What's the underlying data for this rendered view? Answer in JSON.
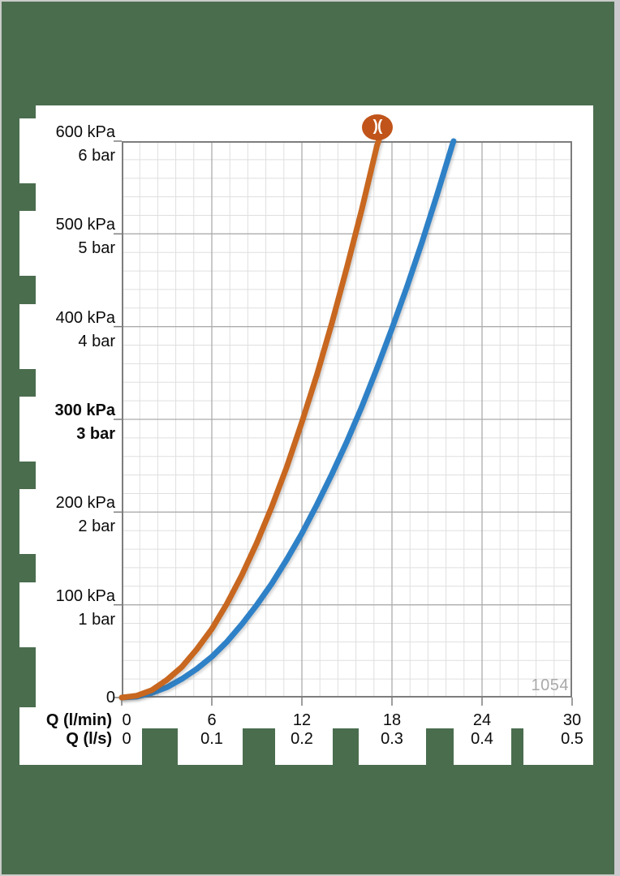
{
  "page": {
    "background": "#4A6D4E",
    "panel": "#FFFFFF",
    "border": "#C9CCC9"
  },
  "logo": {
    "glyph": ")(",
    "color": "#C1541A",
    "text_color": "#FFFFFF"
  },
  "chart_data": {
    "type": "line",
    "title": "",
    "watermark": "1054",
    "x_axis": {
      "row1_label": "Q (l/min)",
      "row2_label": "Q (l/s)",
      "row1_ticks": [
        "0",
        "6",
        "12",
        "18",
        "24",
        "30"
      ],
      "row2_ticks": [
        "0",
        "0.1",
        "0.2",
        "0.3",
        "0.4",
        "0.5"
      ],
      "range_lmin": [
        0,
        30
      ],
      "major_step_lmin": 6,
      "minor_step_lmin": 1.2
    },
    "y_axis": {
      "labels": [
        {
          "kpa": "600 kPa",
          "bar": "6 bar",
          "value": 600,
          "bold": false
        },
        {
          "kpa": "500 kPa",
          "bar": "5 bar",
          "value": 500,
          "bold": false
        },
        {
          "kpa": "400 kPa",
          "bar": "4 bar",
          "value": 400,
          "bold": false
        },
        {
          "kpa": "300 kPa",
          "bar": "3 bar",
          "value": 300,
          "bold": true
        },
        {
          "kpa": "200 kPa",
          "bar": "2 bar",
          "value": 200,
          "bold": false
        },
        {
          "kpa": "100 kPa",
          "bar": "1 bar",
          "value": 100,
          "bold": false
        }
      ],
      "zero_label": "0",
      "range_kpa": [
        0,
        600
      ],
      "major_step_kpa": 100,
      "minor_step_kpa": 20
    },
    "grid": {
      "minor_color": "#DFDFDF",
      "major_color": "#ACACAC",
      "border_color": "#7D7D7D",
      "tick_color": "#7D7D7D"
    },
    "series": [
      {
        "name": "pressure-loss-curve-blue",
        "color": "#2E81C7",
        "stroke_width": 7,
        "overshoot_top": false,
        "points": [
          [
            0,
            0
          ],
          [
            1,
            1
          ],
          [
            2,
            5
          ],
          [
            3,
            11
          ],
          [
            4,
            20
          ],
          [
            5,
            31
          ],
          [
            6,
            44
          ],
          [
            7,
            60
          ],
          [
            8,
            79
          ],
          [
            9,
            100
          ],
          [
            10,
            123
          ],
          [
            11,
            149
          ],
          [
            12,
            177
          ],
          [
            13,
            208
          ],
          [
            14,
            241
          ],
          [
            15,
            276
          ],
          [
            16,
            314
          ],
          [
            17,
            355
          ],
          [
            18,
            398
          ],
          [
            19,
            443
          ],
          [
            20,
            491
          ],
          [
            21,
            542
          ],
          [
            22,
            595
          ],
          [
            22.1,
            600
          ]
        ]
      },
      {
        "name": "pressure-loss-curve-orange",
        "color": "#C8671F",
        "stroke_width": 7,
        "overshoot_top": true,
        "points": [
          [
            0,
            0
          ],
          [
            1,
            2
          ],
          [
            2,
            8
          ],
          [
            3,
            19
          ],
          [
            4,
            33
          ],
          [
            5,
            52
          ],
          [
            6,
            74
          ],
          [
            7,
            101
          ],
          [
            8,
            132
          ],
          [
            9,
            167
          ],
          [
            10,
            206
          ],
          [
            11,
            249
          ],
          [
            12,
            297
          ],
          [
            13,
            348
          ],
          [
            14,
            404
          ],
          [
            15,
            464
          ],
          [
            16,
            527
          ],
          [
            17,
            595
          ],
          [
            17.1,
            600
          ],
          [
            17.35,
            614
          ]
        ]
      }
    ]
  }
}
